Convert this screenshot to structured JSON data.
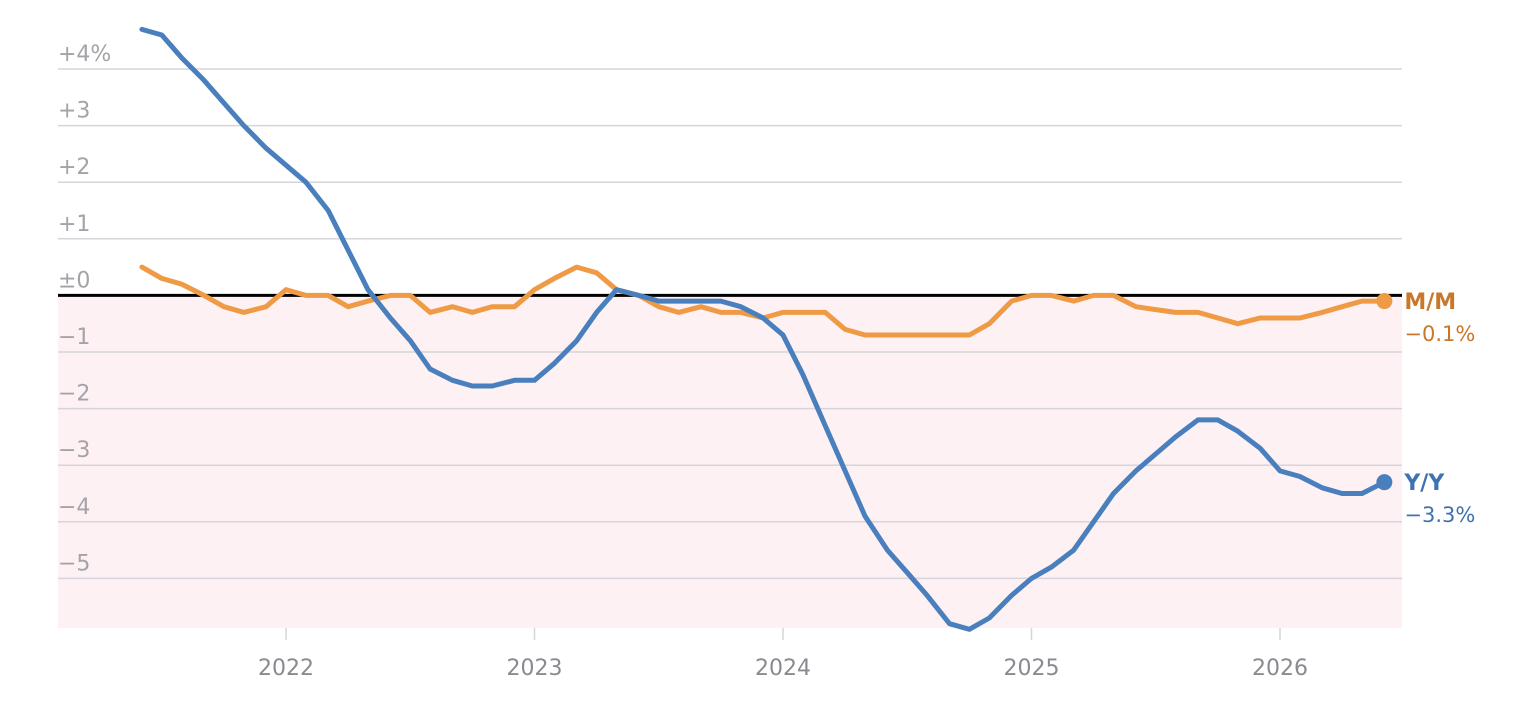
{
  "chart_data": {
    "type": "line",
    "title": "",
    "xlabel": "",
    "ylabel": "",
    "ylim": [
      -5.9,
      4.5
    ],
    "xlim": [
      2021.08,
      2026.5
    ],
    "yticks": [
      {
        "value": 4,
        "label": "+4%"
      },
      {
        "value": 3,
        "label": "+3"
      },
      {
        "value": 2,
        "label": "+2"
      },
      {
        "value": 1,
        "label": "+1"
      },
      {
        "value": 0,
        "label": "±0"
      },
      {
        "value": -1,
        "label": "−1"
      },
      {
        "value": -2,
        "label": "−2"
      },
      {
        "value": -3,
        "label": "−3"
      },
      {
        "value": -4,
        "label": "−4"
      },
      {
        "value": -5,
        "label": "−5"
      }
    ],
    "xticks": [
      {
        "value": 2022,
        "label": "2022"
      },
      {
        "value": 2023,
        "label": "2023"
      },
      {
        "value": 2024,
        "label": "2024"
      },
      {
        "value": 2025,
        "label": "2025"
      },
      {
        "value": 2026,
        "label": "2026"
      }
    ],
    "grid": true,
    "negative_region_color": "#fdf1f3",
    "zero_line_color": "#000000",
    "gridline_color": "#d5d5db",
    "series": [
      {
        "name": "M/M",
        "end_label": "−0.1%",
        "color": "#ef9a45",
        "label_color": "#c9772b",
        "x": [
          2021.42,
          2021.5,
          2021.58,
          2021.67,
          2021.75,
          2021.83,
          2021.92,
          2022.0,
          2022.08,
          2022.17,
          2022.25,
          2022.33,
          2022.42,
          2022.5,
          2022.58,
          2022.67,
          2022.75,
          2022.83,
          2022.92,
          2023.0,
          2023.08,
          2023.17,
          2023.25,
          2023.33,
          2023.42,
          2023.5,
          2023.58,
          2023.67,
          2023.75,
          2023.83,
          2023.92,
          2024.0,
          2024.08,
          2024.17,
          2024.25,
          2024.33,
          2024.42,
          2024.5,
          2024.58,
          2024.67,
          2024.75,
          2024.83,
          2024.92,
          2025.0,
          2025.08,
          2025.17,
          2025.25,
          2025.33,
          2025.42,
          2025.5,
          2025.58,
          2025.67,
          2025.75,
          2025.83,
          2025.92,
          2026.0,
          2026.08,
          2026.17,
          2026.25,
          2026.33,
          2026.42
        ],
        "values": [
          0.5,
          0.3,
          0.2,
          0.0,
          -0.2,
          -0.3,
          -0.2,
          0.1,
          0.0,
          0.0,
          -0.2,
          -0.1,
          0.0,
          0.0,
          -0.3,
          -0.2,
          -0.3,
          -0.2,
          -0.2,
          0.1,
          0.3,
          0.5,
          0.4,
          0.1,
          0.0,
          -0.2,
          -0.3,
          -0.2,
          -0.3,
          -0.3,
          -0.4,
          -0.3,
          -0.3,
          -0.3,
          -0.6,
          -0.7,
          -0.7,
          -0.7,
          -0.7,
          -0.7,
          -0.7,
          -0.5,
          -0.1,
          0.0,
          0.0,
          -0.1,
          0.0,
          0.0,
          -0.2,
          -0.25,
          -0.3,
          -0.3,
          -0.4,
          -0.5,
          -0.4,
          -0.4,
          -0.4,
          -0.3,
          -0.2,
          -0.1,
          -0.1
        ]
      },
      {
        "name": "Y/Y",
        "end_label": "−3.3%",
        "color": "#4a7fbd",
        "label_color": "#3f72b0",
        "x": [
          2021.42,
          2021.5,
          2021.58,
          2021.67,
          2021.75,
          2021.83,
          2021.92,
          2022.0,
          2022.08,
          2022.17,
          2022.25,
          2022.33,
          2022.42,
          2022.5,
          2022.58,
          2022.67,
          2022.75,
          2022.83,
          2022.92,
          2023.0,
          2023.08,
          2023.17,
          2023.25,
          2023.33,
          2023.42,
          2023.5,
          2023.58,
          2023.67,
          2023.75,
          2023.83,
          2023.92,
          2024.0,
          2024.08,
          2024.17,
          2024.25,
          2024.33,
          2024.42,
          2024.5,
          2024.58,
          2024.67,
          2024.75,
          2024.83,
          2024.92,
          2025.0,
          2025.08,
          2025.17,
          2025.25,
          2025.33,
          2025.42,
          2025.5,
          2025.58,
          2025.67,
          2025.75,
          2025.83,
          2025.92,
          2026.0,
          2026.08,
          2026.17,
          2026.25,
          2026.33,
          2026.42
        ],
        "values": [
          4.7,
          4.6,
          4.2,
          3.8,
          3.4,
          3.0,
          2.6,
          2.3,
          2.0,
          1.5,
          0.8,
          0.1,
          -0.4,
          -0.8,
          -1.3,
          -1.5,
          -1.6,
          -1.6,
          -1.5,
          -1.5,
          -1.2,
          -0.8,
          -0.3,
          0.1,
          0.0,
          -0.1,
          -0.1,
          -0.1,
          -0.1,
          -0.2,
          -0.4,
          -0.7,
          -1.4,
          -2.3,
          -3.1,
          -3.9,
          -4.5,
          -4.9,
          -5.3,
          -5.8,
          -5.9,
          -5.7,
          -5.3,
          -5.0,
          -4.8,
          -4.5,
          -4.0,
          -3.5,
          -3.1,
          -2.8,
          -2.5,
          -2.2,
          -2.2,
          -2.4,
          -2.7,
          -3.1,
          -3.2,
          -3.4,
          -3.5,
          -3.5,
          -3.3
        ]
      }
    ]
  }
}
